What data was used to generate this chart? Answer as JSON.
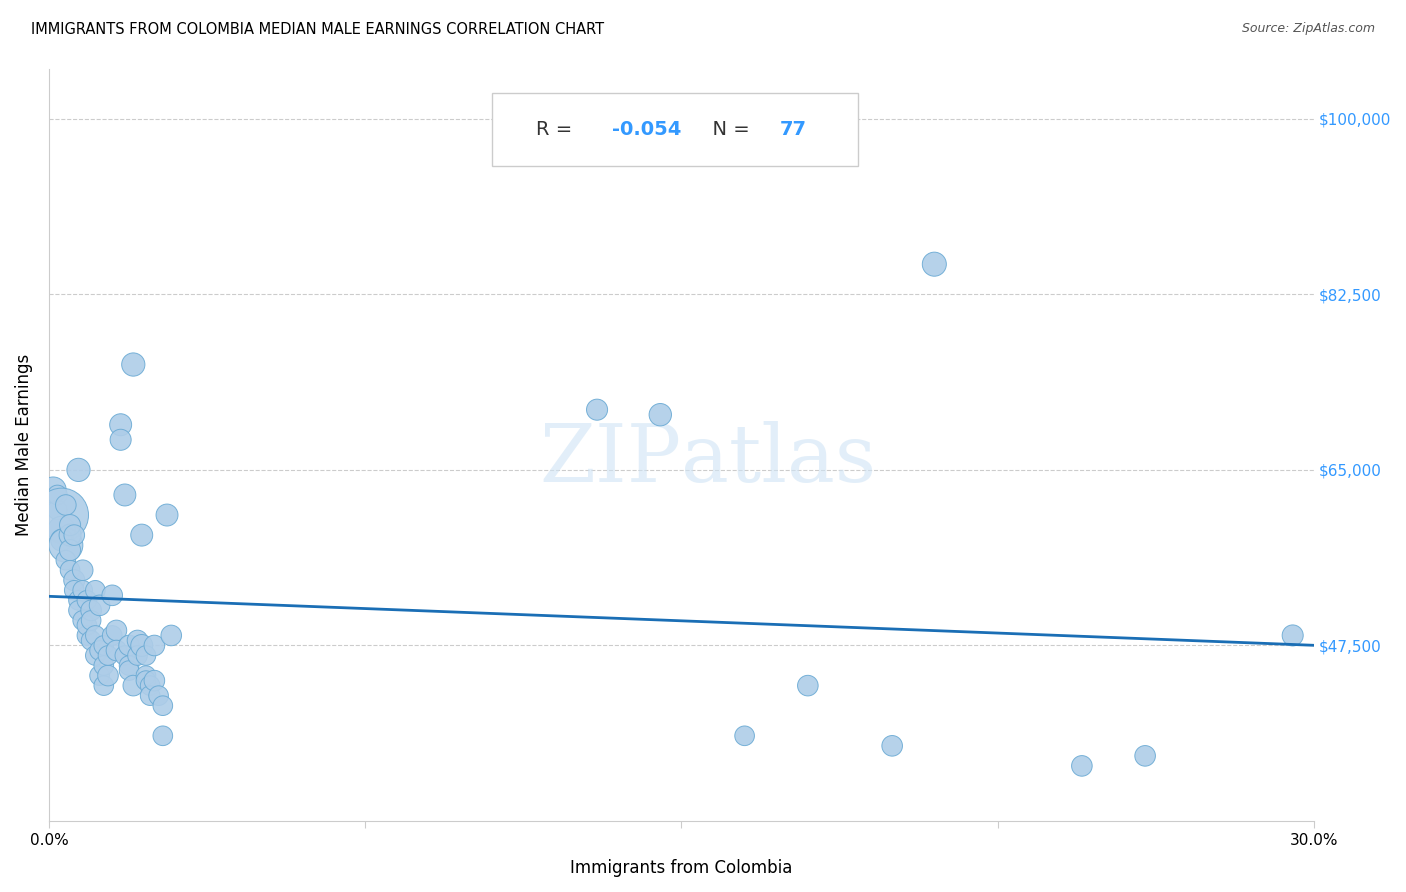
{
  "title": "IMMIGRANTS FROM COLOMBIA MEDIAN MALE EARNINGS CORRELATION CHART",
  "source": "Source: ZipAtlas.com",
  "xlabel": "Immigrants from Colombia",
  "ylabel": "Median Male Earnings",
  "R": -0.054,
  "N": 77,
  "xlim": [
    0.0,
    0.3
  ],
  "ylim": [
    30000,
    105000
  ],
  "yticks": [
    47500,
    65000,
    82500,
    100000
  ],
  "ytick_labels": [
    "$47,500",
    "$65,000",
    "$82,500",
    "$100,000"
  ],
  "xticks": [
    0.0,
    0.075,
    0.15,
    0.225,
    0.3
  ],
  "xtick_labels": [
    "0.0%",
    "",
    "",
    "",
    "30.0%"
  ],
  "scatter_color": "#aecde8",
  "scatter_edge_color": "#6aaad4",
  "line_color": "#1a6eb5",
  "background_color": "#ffffff",
  "watermark": "ZIPatlas",
  "stat_box_color": "#4a90d9",
  "points": [
    [
      0.001,
      63000,
      350
    ],
    [
      0.002,
      61000,
      200
    ],
    [
      0.002,
      62500,
      200
    ],
    [
      0.003,
      59000,
      400
    ],
    [
      0.003,
      60500,
      1500
    ],
    [
      0.003,
      58000,
      250
    ],
    [
      0.004,
      57500,
      600
    ],
    [
      0.004,
      61500,
      220
    ],
    [
      0.004,
      56000,
      200
    ],
    [
      0.005,
      58500,
      250
    ],
    [
      0.005,
      57000,
      230
    ],
    [
      0.005,
      59500,
      230
    ],
    [
      0.005,
      55000,
      200
    ],
    [
      0.006,
      54000,
      230
    ],
    [
      0.006,
      53000,
      200
    ],
    [
      0.006,
      58500,
      220
    ],
    [
      0.007,
      65000,
      280
    ],
    [
      0.007,
      52000,
      200
    ],
    [
      0.007,
      51000,
      200
    ],
    [
      0.008,
      50000,
      200
    ],
    [
      0.008,
      55000,
      220
    ],
    [
      0.008,
      53000,
      200
    ],
    [
      0.009,
      52000,
      200
    ],
    [
      0.009,
      48500,
      200
    ],
    [
      0.009,
      49500,
      200
    ],
    [
      0.01,
      48000,
      200
    ],
    [
      0.01,
      51000,
      220
    ],
    [
      0.01,
      50000,
      200
    ],
    [
      0.011,
      53000,
      200
    ],
    [
      0.011,
      46500,
      200
    ],
    [
      0.011,
      48500,
      200
    ],
    [
      0.012,
      51500,
      220
    ],
    [
      0.012,
      44500,
      200
    ],
    [
      0.012,
      47000,
      200
    ],
    [
      0.013,
      43500,
      200
    ],
    [
      0.013,
      45500,
      200
    ],
    [
      0.013,
      47500,
      200
    ],
    [
      0.014,
      44500,
      220
    ],
    [
      0.014,
      46500,
      200
    ],
    [
      0.015,
      52500,
      220
    ],
    [
      0.015,
      48500,
      200
    ],
    [
      0.016,
      49000,
      220
    ],
    [
      0.016,
      47000,
      220
    ],
    [
      0.017,
      69500,
      250
    ],
    [
      0.017,
      68000,
      230
    ],
    [
      0.018,
      62500,
      250
    ],
    [
      0.018,
      46500,
      200
    ],
    [
      0.019,
      47500,
      220
    ],
    [
      0.019,
      45500,
      200
    ],
    [
      0.019,
      45000,
      200
    ],
    [
      0.02,
      75500,
      280
    ],
    [
      0.02,
      43500,
      220
    ],
    [
      0.021,
      48000,
      220
    ],
    [
      0.021,
      46500,
      200
    ],
    [
      0.022,
      58500,
      250
    ],
    [
      0.022,
      47500,
      250
    ],
    [
      0.023,
      44500,
      200
    ],
    [
      0.023,
      46500,
      200
    ],
    [
      0.023,
      44000,
      200
    ],
    [
      0.024,
      43500,
      200
    ],
    [
      0.024,
      42500,
      200
    ],
    [
      0.025,
      47500,
      220
    ],
    [
      0.025,
      44000,
      220
    ],
    [
      0.026,
      42500,
      200
    ],
    [
      0.027,
      41500,
      200
    ],
    [
      0.027,
      38500,
      200
    ],
    [
      0.028,
      60500,
      250
    ],
    [
      0.029,
      48500,
      220
    ],
    [
      0.13,
      71000,
      230
    ],
    [
      0.145,
      70500,
      260
    ],
    [
      0.165,
      38500,
      200
    ],
    [
      0.18,
      43500,
      220
    ],
    [
      0.2,
      37500,
      220
    ],
    [
      0.21,
      85500,
      300
    ],
    [
      0.245,
      35500,
      220
    ],
    [
      0.26,
      36500,
      220
    ],
    [
      0.295,
      48500,
      230
    ]
  ]
}
